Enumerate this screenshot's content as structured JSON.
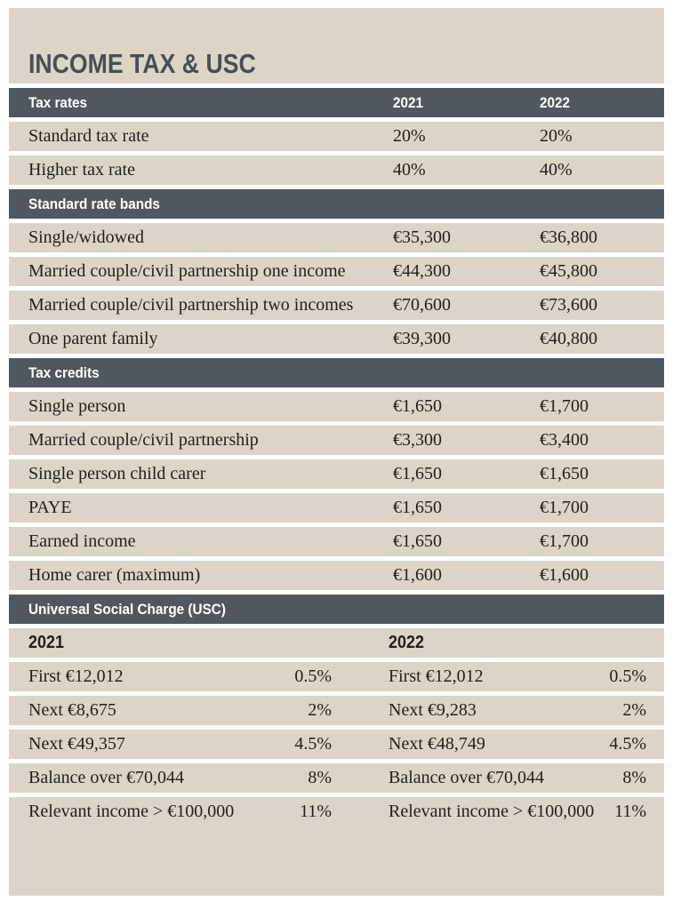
{
  "title": "INCOME TAX & USC",
  "colors": {
    "panel_background": "#dcd4c7",
    "section_header_background": "#50575f",
    "section_header_text": "#ffffff",
    "body_text": "#211f1c",
    "title_text": "#4a4e54",
    "page_background": "#ffffff"
  },
  "income_tax_table": {
    "columns": [
      "2021",
      "2022"
    ],
    "sections": [
      {
        "header": "Tax rates",
        "show_year_columns": true,
        "rows": [
          {
            "label": "Standard tax rate",
            "v2021": "20%",
            "v2022": "20%"
          },
          {
            "label": "Higher tax rate",
            "v2021": "40%",
            "v2022": "40%"
          }
        ]
      },
      {
        "header": "Standard rate bands",
        "show_year_columns": false,
        "rows": [
          {
            "label": "Single/widowed",
            "v2021": "€35,300",
            "v2022": "€36,800"
          },
          {
            "label": "Married couple/civil partnership one income",
            "v2021": "€44,300",
            "v2022": "€45,800"
          },
          {
            "label": "Married couple/civil partnership two incomes",
            "v2021": "€70,600",
            "v2022": "€73,600"
          },
          {
            "label": "One parent family",
            "v2021": "€39,300",
            "v2022": "€40,800"
          }
        ]
      },
      {
        "header": "Tax credits",
        "show_year_columns": false,
        "rows": [
          {
            "label": "Single person",
            "v2021": "€1,650",
            "v2022": "€1,700"
          },
          {
            "label": "Married couple/civil partnership",
            "v2021": "€3,300",
            "v2022": "€3,400"
          },
          {
            "label": "Single person child carer",
            "v2021": "€1,650",
            "v2022": "€1,650"
          },
          {
            "label": "PAYE",
            "v2021": "€1,650",
            "v2022": "€1,700"
          },
          {
            "label": "Earned income",
            "v2021": "€1,650",
            "v2022": "€1,700"
          },
          {
            "label": "Home carer (maximum)",
            "v2021": "€1,600",
            "v2022": "€1,600"
          }
        ]
      }
    ]
  },
  "usc_table": {
    "header": "Universal Social Charge (USC)",
    "columns": [
      {
        "year": "2021",
        "rows": [
          {
            "band": "First €12,012",
            "rate": "0.5%"
          },
          {
            "band": "Next €8,675",
            "rate": "2%"
          },
          {
            "band": "Next €49,357",
            "rate": "4.5%"
          },
          {
            "band": "Balance over €70,044",
            "rate": "8%"
          },
          {
            "band": "Relevant income > €100,000",
            "rate": "11%"
          }
        ]
      },
      {
        "year": "2022",
        "rows": [
          {
            "band": "First €12,012",
            "rate": "0.5%"
          },
          {
            "band": "Next €9,283",
            "rate": "2%"
          },
          {
            "band": "Next €48,749",
            "rate": "4.5%"
          },
          {
            "band": "Balance over €70,044",
            "rate": "8%"
          },
          {
            "band": "Relevant income > €100,000",
            "rate": "11%"
          }
        ]
      }
    ]
  }
}
